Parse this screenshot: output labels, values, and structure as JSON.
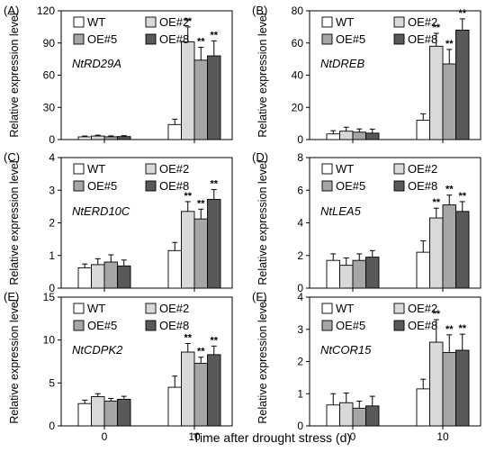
{
  "x_axis_label": "Time after drought stress (d)",
  "colors": {
    "WT": "#ffffff",
    "OE#2": "#d9d9d9",
    "OE#5": "#a6a6a6",
    "OE#8": "#595959"
  },
  "chart_data": [
    {
      "panel": "(A)",
      "gene": "NtRD29A",
      "type": "bar",
      "categories": [
        "0",
        "10"
      ],
      "ylabel": "Relative expression level",
      "ylim": [
        0,
        120
      ],
      "yticks": [
        0,
        30,
        60,
        90,
        120
      ],
      "legend": [
        "WT",
        "OE#2",
        "OE#5",
        "OE#8"
      ],
      "legend_position": "top-left",
      "series": [
        {
          "name": "WT",
          "values": [
            2.5,
            14
          ],
          "errors": [
            0.8,
            5
          ],
          "sig": [
            "",
            ""
          ]
        },
        {
          "name": "OE#2",
          "values": [
            3.3,
            91
          ],
          "errors": [
            0.8,
            14
          ],
          "sig": [
            "",
            "**"
          ]
        },
        {
          "name": "OE#5",
          "values": [
            2.6,
            74
          ],
          "errors": [
            0.8,
            12
          ],
          "sig": [
            "",
            "**"
          ]
        },
        {
          "name": "OE#8",
          "values": [
            2.8,
            78
          ],
          "errors": [
            0.8,
            14
          ],
          "sig": [
            "",
            "**"
          ]
        }
      ]
    },
    {
      "panel": "(B)",
      "gene": "NtDREB",
      "type": "bar",
      "categories": [
        "0",
        "10"
      ],
      "ylabel": "Relative expression level",
      "ylim": [
        0,
        80
      ],
      "yticks": [
        0,
        20,
        40,
        60,
        80
      ],
      "legend": [
        "WT",
        "OE#2",
        "OE#5",
        "OE#8"
      ],
      "legend_position": "top-left",
      "series": [
        {
          "name": "WT",
          "values": [
            3.5,
            12
          ],
          "errors": [
            2.0,
            4
          ],
          "sig": [
            "",
            ""
          ]
        },
        {
          "name": "OE#2",
          "values": [
            5.2,
            58
          ],
          "errors": [
            2.5,
            8
          ],
          "sig": [
            "",
            "**"
          ]
        },
        {
          "name": "OE#5",
          "values": [
            4.6,
            47
          ],
          "errors": [
            2.0,
            9
          ],
          "sig": [
            "",
            "**"
          ]
        },
        {
          "name": "OE#8",
          "values": [
            4.0,
            68
          ],
          "errors": [
            2.5,
            7
          ],
          "sig": [
            "",
            "**"
          ]
        }
      ]
    },
    {
      "panel": "(C)",
      "gene": "NtERD10C",
      "type": "bar",
      "categories": [
        "0",
        "10"
      ],
      "ylabel": "Relative expression level",
      "ylim": [
        0,
        4
      ],
      "yticks": [
        0,
        1,
        2,
        3,
        4
      ],
      "legend": [
        "WT",
        "OE#2",
        "OE#5",
        "OE#8"
      ],
      "legend_position": "top-left",
      "series": [
        {
          "name": "WT",
          "values": [
            0.62,
            1.15
          ],
          "errors": [
            0.12,
            0.25
          ],
          "sig": [
            "",
            ""
          ]
        },
        {
          "name": "OE#2",
          "values": [
            0.72,
            2.35
          ],
          "errors": [
            0.18,
            0.3
          ],
          "sig": [
            "",
            "**"
          ]
        },
        {
          "name": "OE#5",
          "values": [
            0.8,
            2.12
          ],
          "errors": [
            0.22,
            0.3
          ],
          "sig": [
            "",
            "**"
          ]
        },
        {
          "name": "OE#8",
          "values": [
            0.68,
            2.72
          ],
          "errors": [
            0.18,
            0.3
          ],
          "sig": [
            "",
            "**"
          ]
        }
      ]
    },
    {
      "panel": "(D)",
      "gene": "NtLEA5",
      "type": "bar",
      "categories": [
        "0",
        "10"
      ],
      "ylabel": "Relative expression level",
      "ylim": [
        0,
        8
      ],
      "yticks": [
        0,
        2,
        4,
        6,
        8
      ],
      "legend": [
        "WT",
        "OE#2",
        "OE#5",
        "OE#8"
      ],
      "legend_position": "top-left",
      "series": [
        {
          "name": "WT",
          "values": [
            1.7,
            2.2
          ],
          "errors": [
            0.4,
            0.7
          ],
          "sig": [
            "",
            ""
          ]
        },
        {
          "name": "OE#2",
          "values": [
            1.4,
            4.3
          ],
          "errors": [
            0.45,
            0.6
          ],
          "sig": [
            "",
            "**"
          ]
        },
        {
          "name": "OE#5",
          "values": [
            1.7,
            5.1
          ],
          "errors": [
            0.4,
            0.6
          ],
          "sig": [
            "",
            "**"
          ]
        },
        {
          "name": "OE#8",
          "values": [
            1.9,
            4.7
          ],
          "errors": [
            0.4,
            0.6
          ],
          "sig": [
            "",
            "**"
          ]
        }
      ]
    },
    {
      "panel": "(E)",
      "gene": "NtCDPK2",
      "type": "bar",
      "categories": [
        "0",
        "10"
      ],
      "ylabel": "Relative expression level",
      "ylim": [
        0,
        15
      ],
      "yticks": [
        0,
        5,
        10,
        15
      ],
      "legend": [
        "WT",
        "OE#2",
        "OE#5",
        "OE#8"
      ],
      "legend_position": "top-left",
      "series": [
        {
          "name": "WT",
          "values": [
            2.6,
            4.5
          ],
          "errors": [
            0.4,
            1.3
          ],
          "sig": [
            "",
            ""
          ]
        },
        {
          "name": "OE#2",
          "values": [
            3.4,
            8.6
          ],
          "errors": [
            0.35,
            1.0
          ],
          "sig": [
            "",
            "**"
          ]
        },
        {
          "name": "OE#5",
          "values": [
            2.9,
            7.3
          ],
          "errors": [
            0.3,
            0.7
          ],
          "sig": [
            "",
            "**"
          ]
        },
        {
          "name": "OE#8",
          "values": [
            3.1,
            8.3
          ],
          "errors": [
            0.35,
            1.0
          ],
          "sig": [
            "",
            "**"
          ]
        }
      ]
    },
    {
      "panel": "(F)",
      "gene": "NtCOR15",
      "type": "bar",
      "categories": [
        "0",
        "10"
      ],
      "ylabel": "Relative expression level",
      "ylim": [
        0,
        4
      ],
      "yticks": [
        0,
        1,
        2,
        3,
        4
      ],
      "legend": [
        "WT",
        "OE#2",
        "OE#5",
        "OE#8"
      ],
      "legend_position": "top-left",
      "series": [
        {
          "name": "WT",
          "values": [
            0.65,
            1.15
          ],
          "errors": [
            0.35,
            0.3
          ],
          "sig": [
            "",
            ""
          ]
        },
        {
          "name": "OE#2",
          "values": [
            0.72,
            2.6
          ],
          "errors": [
            0.3,
            0.7
          ],
          "sig": [
            "",
            "**"
          ]
        },
        {
          "name": "OE#5",
          "values": [
            0.55,
            2.28
          ],
          "errors": [
            0.22,
            0.55
          ],
          "sig": [
            "",
            "**"
          ]
        },
        {
          "name": "OE#8",
          "values": [
            0.62,
            2.35
          ],
          "errors": [
            0.3,
            0.5
          ],
          "sig": [
            "",
            "**"
          ]
        }
      ]
    }
  ]
}
